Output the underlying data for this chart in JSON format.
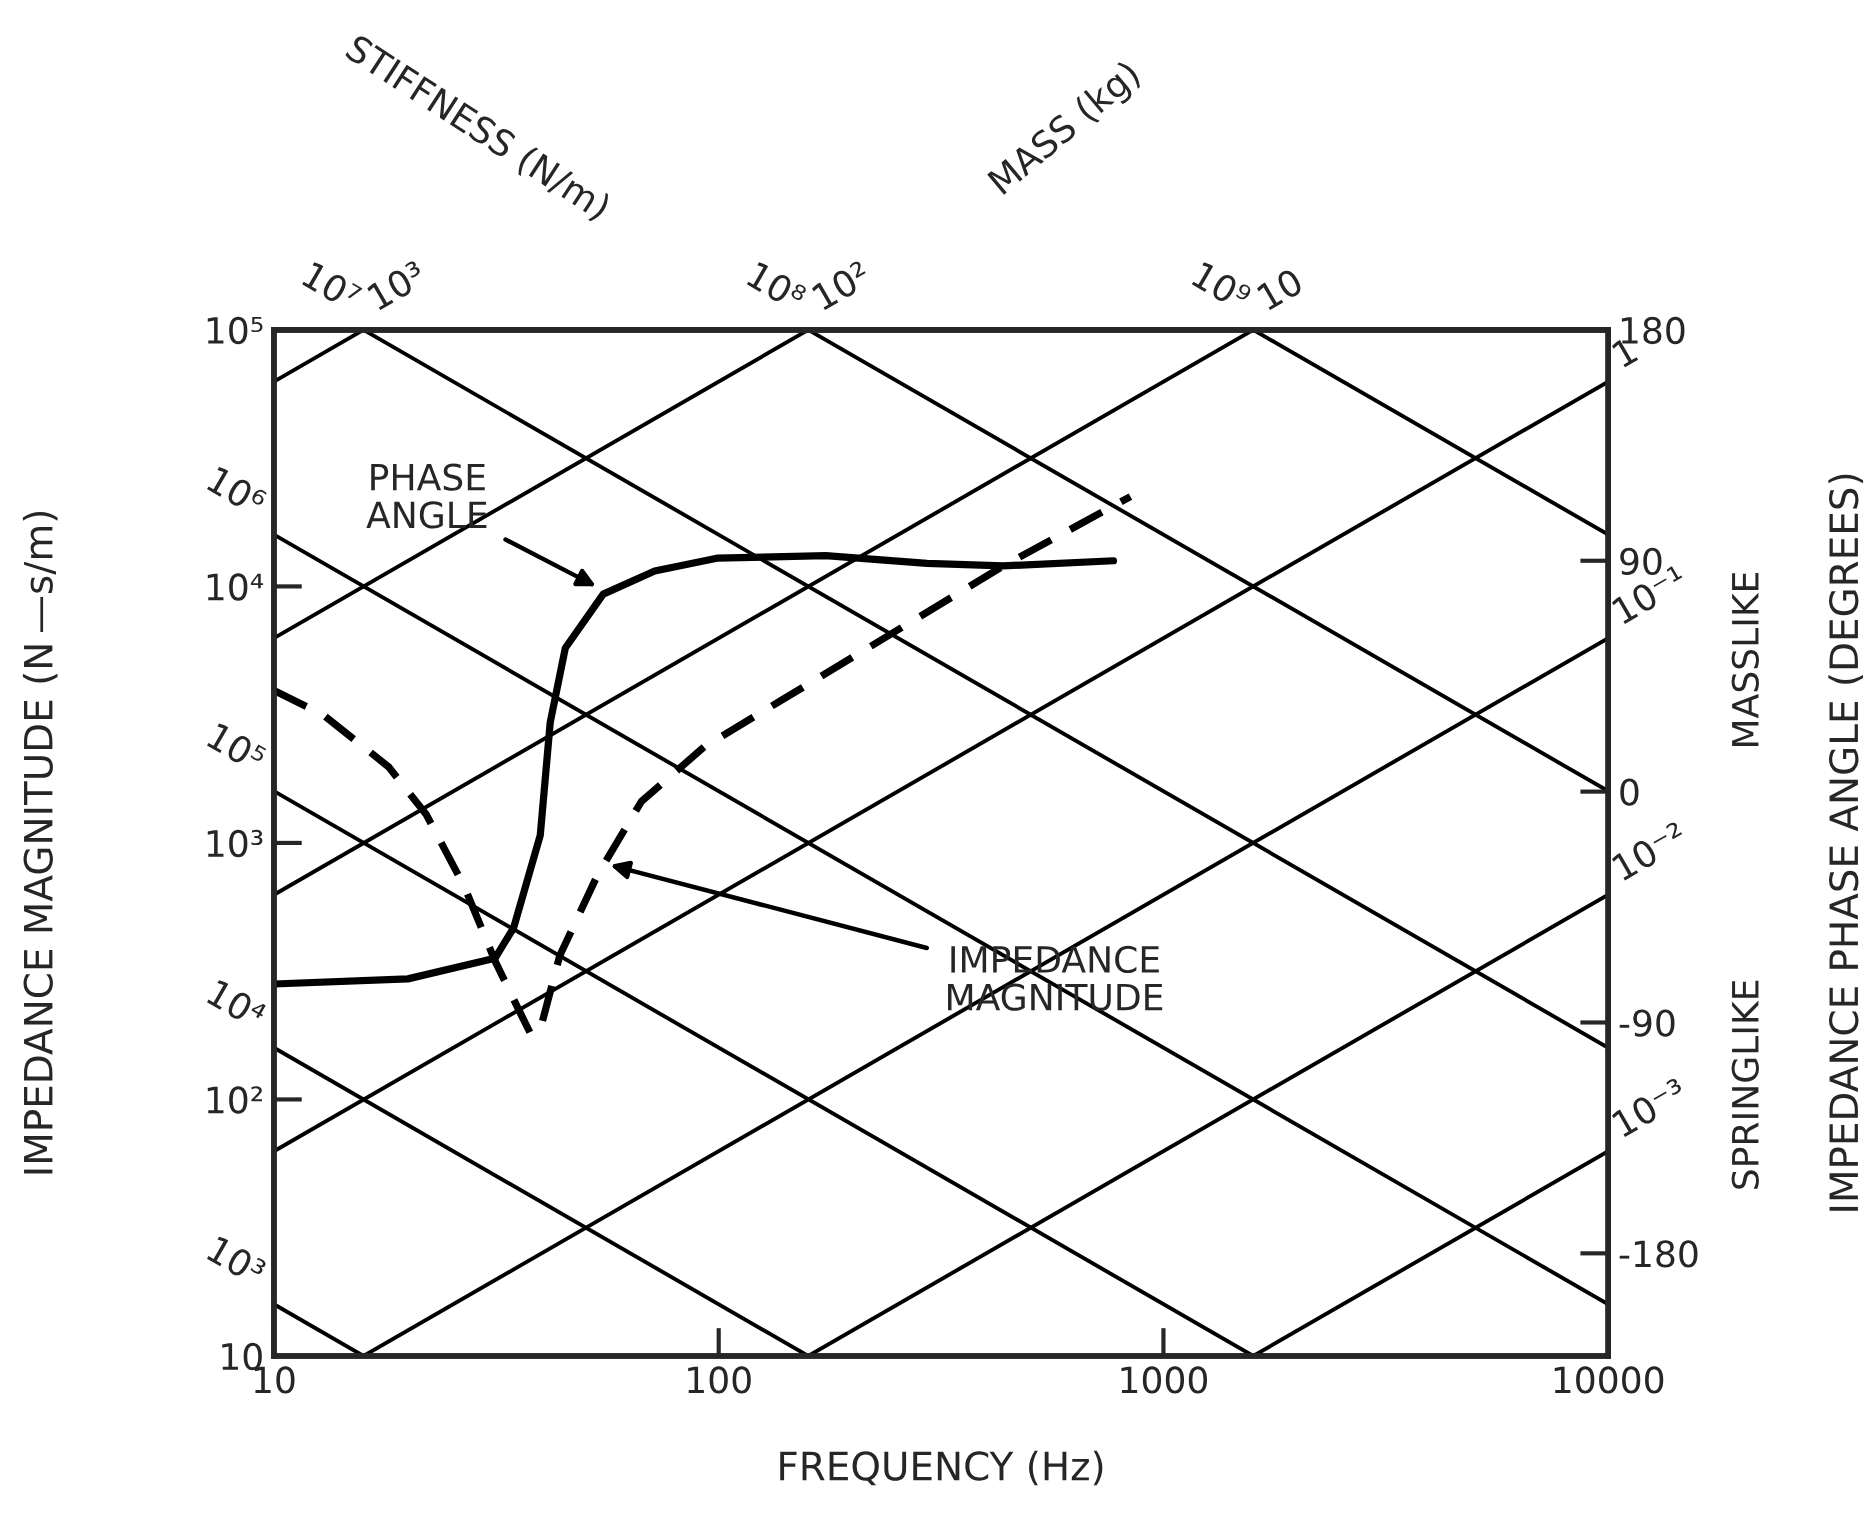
{
  "chart_data": {
    "type": "line",
    "xlabel": "FREQUENCY (Hz)",
    "ylabel": "IMPEDANCE MAGNITUDE (N —s/m)",
    "y2label": "IMPEDANCE PHASE ANGLE (DEGREES)",
    "log": "xy",
    "grid": false,
    "xlim": [
      10,
      10000
    ],
    "xticks": [
      10,
      100,
      1000,
      10000
    ],
    "ylim": [
      10,
      100000
    ],
    "yticks": [
      10,
      {
        "value": 100,
        "label": "10²"
      },
      {
        "value": 1000,
        "label": "10³"
      },
      {
        "value": 10000,
        "label": "10⁴"
      },
      {
        "value": 100000,
        "label": "10⁵"
      }
    ],
    "y2lim": [
      -220,
      180
    ],
    "y2ticks": [
      -180,
      -90,
      0,
      90,
      180
    ],
    "series": [
      {
        "name": "10⁷",
        "color": "#000000",
        "x": [
          15.9,
          10000
        ],
        "values": [
          100000,
          159
        ]
      },
      {
        "name": "10⁸",
        "color": "#000000",
        "x": [
          159,
          10000
        ],
        "values": [
          100000,
          1592
        ]
      },
      {
        "name": "10⁹",
        "color": "#000000",
        "x": [
          1592,
          10000
        ],
        "values": [
          100000,
          15915
        ]
      },
      {
        "name": "10⁶",
        "color": "#000000",
        "x": [
          10,
          10000
        ],
        "values": [
          15915,
          15.9
        ]
      },
      {
        "name": "10⁵",
        "color": "#000000",
        "x": [
          10,
          1592
        ],
        "values": [
          1592,
          10
        ]
      },
      {
        "name": "10⁴",
        "color": "#000000",
        "x": [
          10,
          159
        ],
        "values": [
          159,
          10
        ]
      },
      {
        "name": "10³",
        "color": "#000000",
        "x": [
          10,
          15.9
        ],
        "values": [
          15.9,
          10
        ]
      },
      {
        "name": "10³",
        "color": "#000000",
        "x": [
          10,
          15.9
        ],
        "values": [
          62832,
          100000
        ]
      },
      {
        "name": "10²",
        "color": "#000000",
        "x": [
          10,
          159
        ],
        "values": [
          6283,
          100000
        ]
      },
      {
        "name": "10",
        "color": "#000000",
        "x": [
          10,
          1592
        ],
        "values": [
          628,
          100000
        ]
      },
      {
        "name": "1",
        "color": "#000000",
        "x": [
          10,
          10000
        ],
        "values": [
          62.8,
          62832
        ]
      },
      {
        "name": "10⁻¹",
        "color": "#000000",
        "x": [
          15.9,
          10000
        ],
        "values": [
          10,
          6283
        ]
      },
      {
        "name": "10⁻²",
        "color": "#000000",
        "x": [
          159,
          10000
        ],
        "values": [
          10,
          628
        ]
      },
      {
        "name": "10⁻³",
        "color": "#000000",
        "x": [
          1592,
          10000
        ],
        "values": [
          10,
          62.8
        ]
      },
      {
        "color": "#000000",
        "axis": "y2",
        "x": [
          10,
          20,
          31.4,
          34.6,
          39.7,
          41.8,
          45.2,
          55,
          71.8,
          99,
          174,
          294,
          436,
          772
        ],
        "values": [
          -75,
          -73,
          -65,
          -53,
          -17,
          27,
          56,
          77,
          86,
          91,
          92,
          89,
          88,
          90
        ]
      },
      {
        "color": "#000000",
        "line_style": "dashed",
        "x": [
          10,
          12.9,
          18.1,
          22,
          26.8,
          31.4,
          36,
          37.9,
          40.1,
          43.9,
          53.4,
          67,
          92.8,
          137,
          211,
          436,
          843
        ],
        "values": [
          3930,
          3160,
          1980,
          1290,
          676,
          347,
          213,
          178,
          200,
          363,
          750,
          1450,
          2370,
          3560,
          5600,
          12000,
          22400
        ]
      }
    ],
    "annotations": [
      {
        "text": "PHASE\nANGLE",
        "x": 53,
        "y": 10000
      },
      {
        "text": "IMPEDANCE\nMAGNITUDE",
        "x": 57,
        "y": 820
      },
      "STIFFNESS (N/m)",
      "MASS (kg)",
      "MASSLIKE",
      "SPRINGLIKE"
    ]
  }
}
